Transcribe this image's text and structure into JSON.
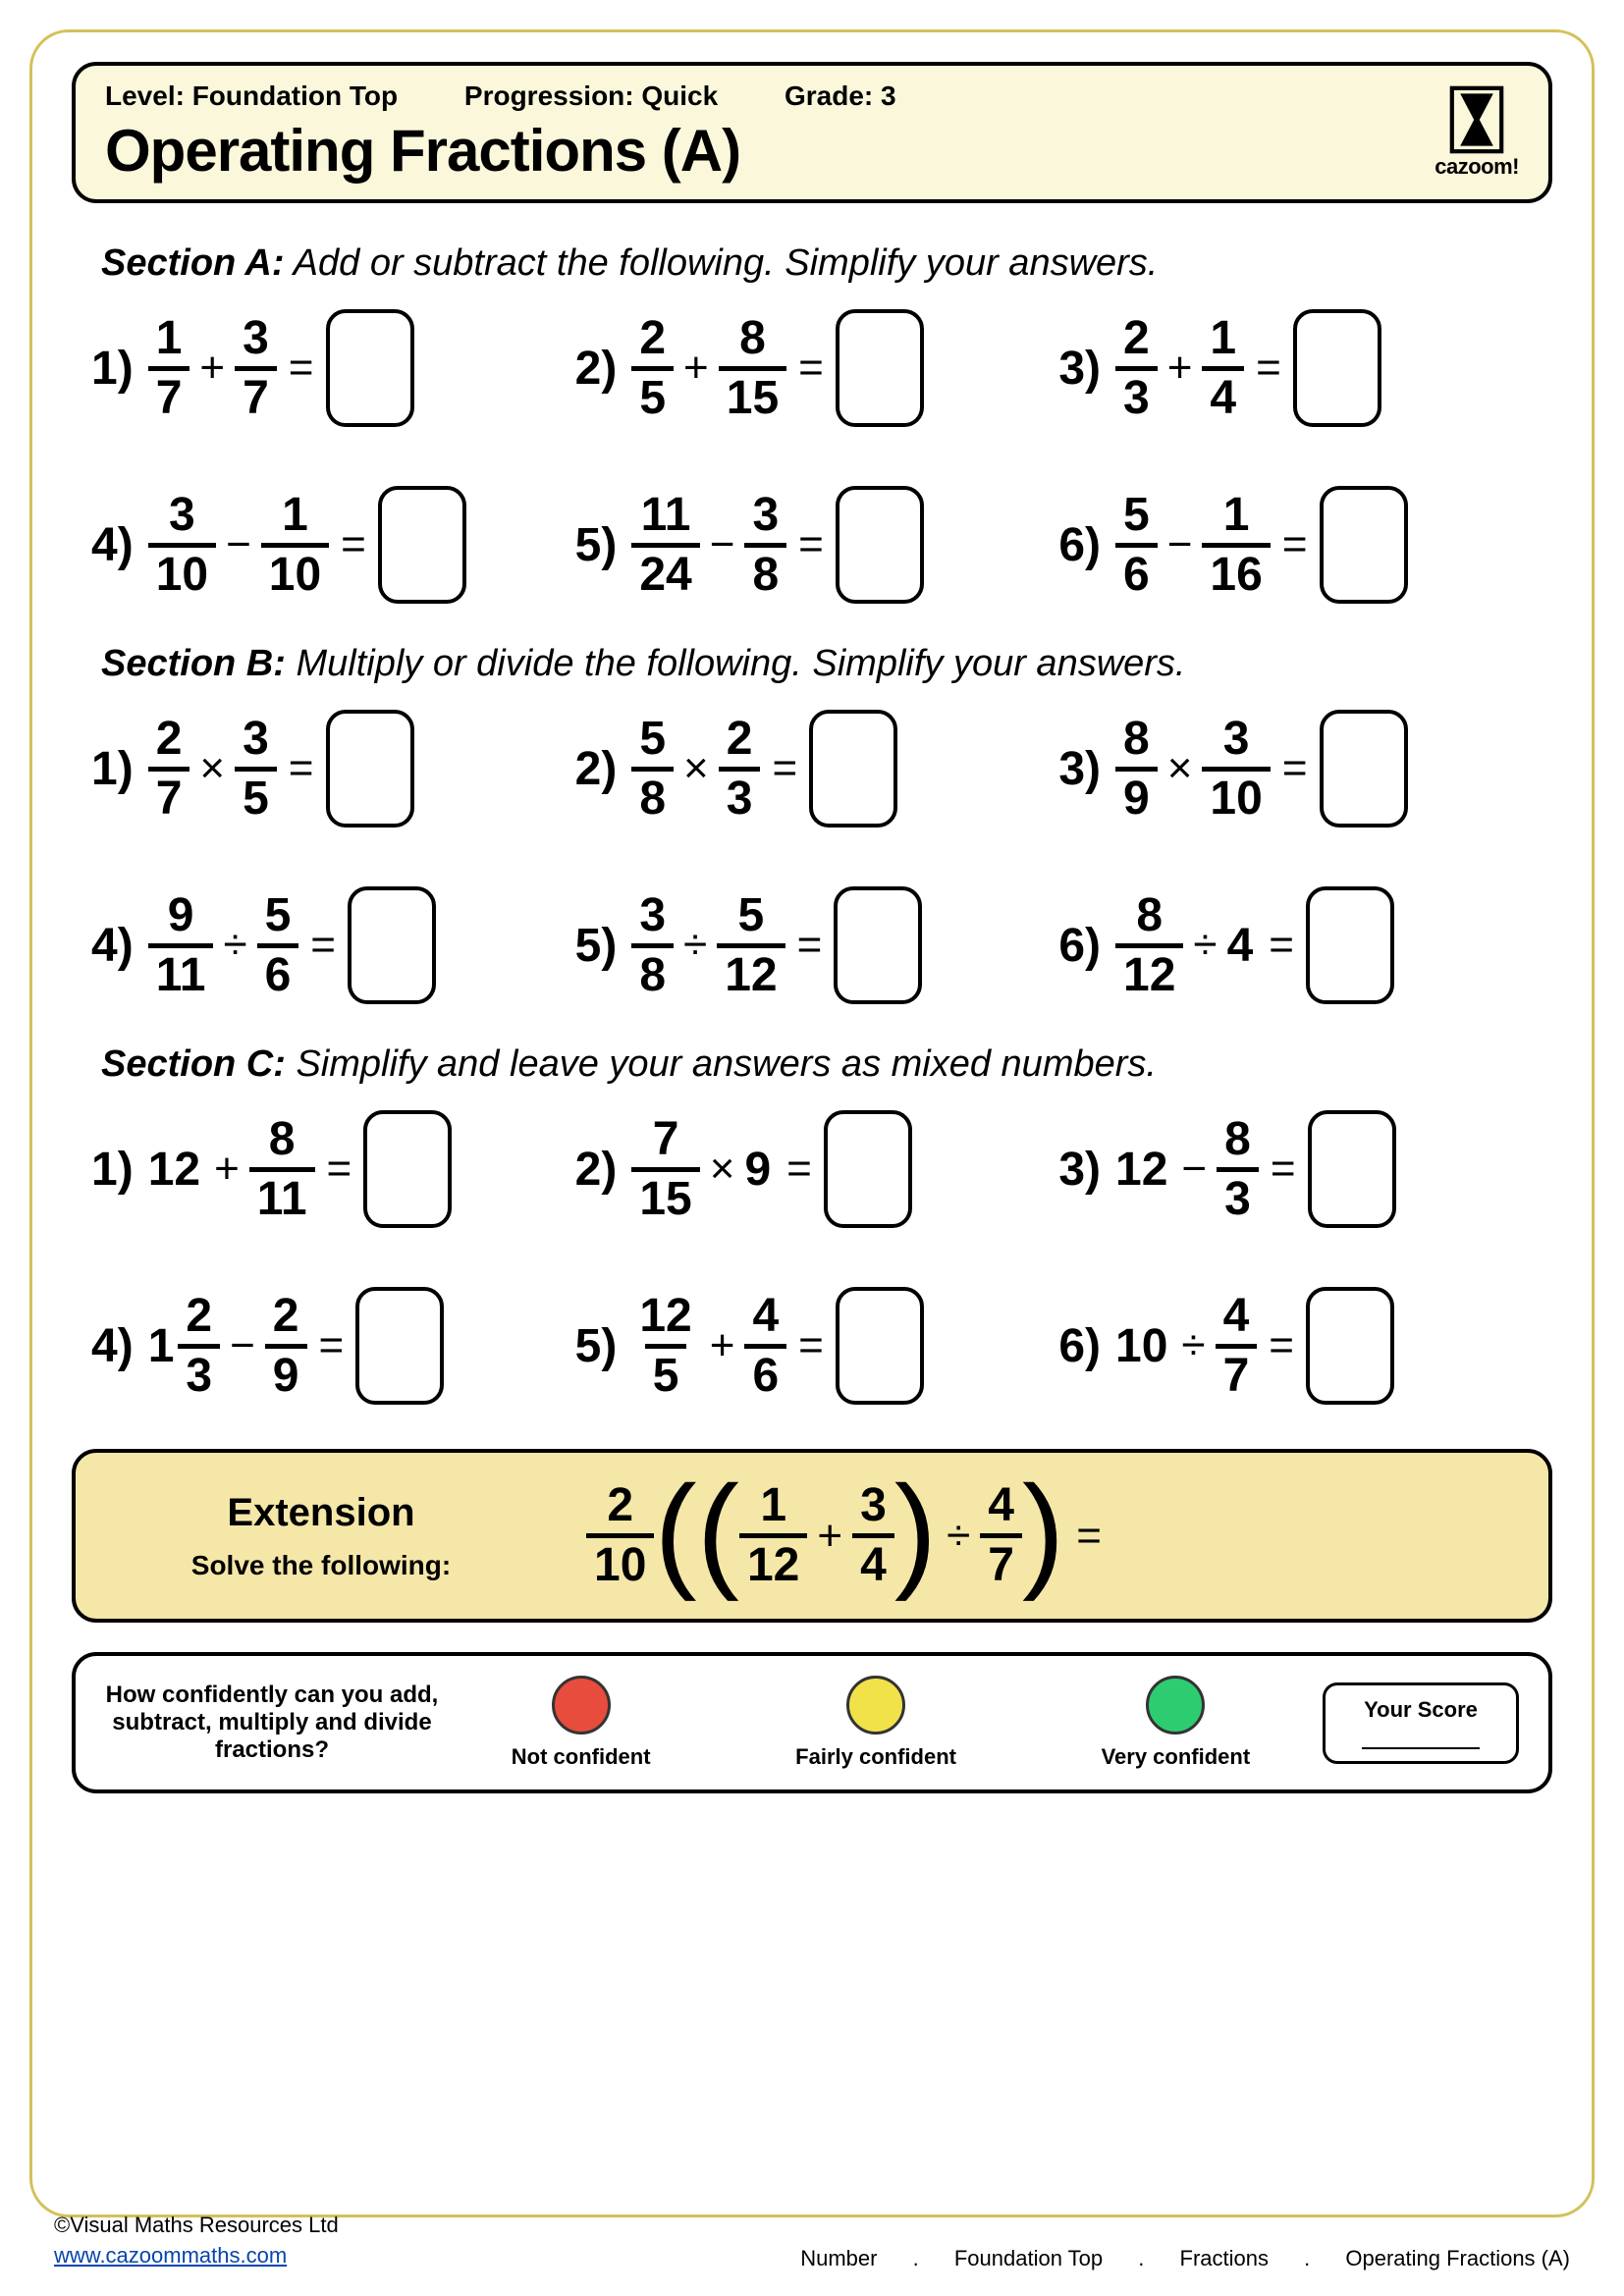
{
  "header": {
    "level": "Level: Foundation Top",
    "progression": "Progression: Quick",
    "grade": "Grade: 3",
    "title": "Operating Fractions (A)",
    "logo_text": "cazoom!"
  },
  "sections": {
    "A": {
      "title": "Section A:",
      "instruction": "Add or subtract the following. Simplify your answers."
    },
    "B": {
      "title": "Section B:",
      "instruction": "Multiply or divide the following. Simplify your answers."
    },
    "C": {
      "title": "Section C:",
      "instruction": "Simplify and leave your answers as mixed numbers."
    }
  },
  "problems": {
    "A": [
      {
        "n": "1)",
        "a": {
          "num": "1",
          "den": "7"
        },
        "op": "+",
        "b": {
          "num": "3",
          "den": "7"
        }
      },
      {
        "n": "2)",
        "a": {
          "num": "2",
          "den": "5"
        },
        "op": "+",
        "b": {
          "num": "8",
          "den": "15"
        }
      },
      {
        "n": "3)",
        "a": {
          "num": "2",
          "den": "3"
        },
        "op": "+",
        "b": {
          "num": "1",
          "den": "4"
        }
      },
      {
        "n": "4)",
        "a": {
          "num": "3",
          "den": "10"
        },
        "op": "−",
        "b": {
          "num": "1",
          "den": "10"
        }
      },
      {
        "n": "5)",
        "a": {
          "num": "11",
          "den": "24"
        },
        "op": "−",
        "b": {
          "num": "3",
          "den": "8"
        }
      },
      {
        "n": "6)",
        "a": {
          "num": "5",
          "den": "6"
        },
        "op": "−",
        "b": {
          "num": "1",
          "den": "16"
        }
      }
    ],
    "B": [
      {
        "n": "1)",
        "a": {
          "num": "2",
          "den": "7"
        },
        "op": "×",
        "b": {
          "num": "3",
          "den": "5"
        }
      },
      {
        "n": "2)",
        "a": {
          "num": "5",
          "den": "8"
        },
        "op": "×",
        "b": {
          "num": "2",
          "den": "3"
        }
      },
      {
        "n": "3)",
        "a": {
          "num": "8",
          "den": "9"
        },
        "op": "×",
        "b": {
          "num": "3",
          "den": "10"
        }
      },
      {
        "n": "4)",
        "a": {
          "num": "9",
          "den": "11"
        },
        "op": "÷",
        "b": {
          "num": "5",
          "den": "6"
        }
      },
      {
        "n": "5)",
        "a": {
          "num": "3",
          "den": "8"
        },
        "op": "÷",
        "b": {
          "num": "5",
          "den": "12"
        }
      },
      {
        "n": "6)",
        "a": {
          "num": "8",
          "den": "12"
        },
        "op": "÷",
        "b_whole": "4"
      }
    ],
    "C": [
      {
        "n": "1)",
        "a_whole": "12",
        "op": "+",
        "b": {
          "num": "8",
          "den": "11"
        }
      },
      {
        "n": "2)",
        "a": {
          "num": "7",
          "den": "15"
        },
        "op": "×",
        "b_whole": "9"
      },
      {
        "n": "3)",
        "a_whole": "12",
        "op": "−",
        "b": {
          "num": "8",
          "den": "3"
        }
      },
      {
        "n": "4)",
        "a_mixed": {
          "whole": "1",
          "num": "2",
          "den": "3"
        },
        "op": "−",
        "b": {
          "num": "2",
          "den": "9"
        }
      },
      {
        "n": "5)",
        "a": {
          "num": "12",
          "den": "5"
        },
        "op": "+",
        "b": {
          "num": "4",
          "den": "6"
        }
      },
      {
        "n": "6)",
        "a_whole": "10",
        "op": "÷",
        "b": {
          "num": "4",
          "den": "7"
        }
      }
    ]
  },
  "extension": {
    "title": "Extension",
    "sub": "Solve the following:",
    "front": {
      "num": "2",
      "den": "10"
    },
    "inner_a": {
      "num": "1",
      "den": "12"
    },
    "inner_op": "+",
    "inner_b": {
      "num": "3",
      "den": "4"
    },
    "mid_op": "÷",
    "last": {
      "num": "4",
      "den": "7"
    }
  },
  "confidence": {
    "question": "How confidently can you add, subtract, multiply and divide fractions?",
    "opts": [
      {
        "label": "Not confident",
        "color": "#e74c3c"
      },
      {
        "label": "Fairly confident",
        "color": "#f1e24a"
      },
      {
        "label": "Very confident",
        "color": "#2ecc71"
      }
    ],
    "score_label": "Your Score"
  },
  "footer": {
    "copyright": "©Visual Maths Resources Ltd",
    "url": "www.cazoommaths.com",
    "crumbs": [
      "Number",
      ".",
      "Foundation Top",
      ".",
      "Fractions",
      ".",
      "Operating Fractions (A)"
    ]
  }
}
